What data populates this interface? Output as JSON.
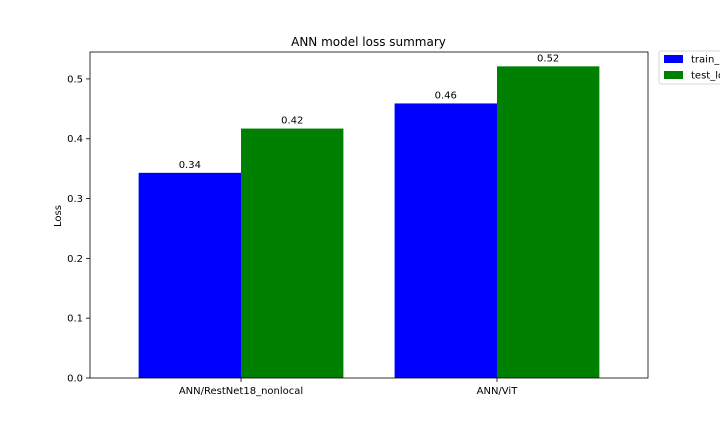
{
  "chart_data": {
    "type": "bar",
    "title": "ANN model loss summary",
    "xlabel": "",
    "ylabel": "Loss",
    "categories": [
      "ANN/RestNet18_nonlocal",
      "ANN/ViT"
    ],
    "series": [
      {
        "name": "train_loss",
        "legend_label": "train_l",
        "color": "#0000ff",
        "values": [
          0.343,
          0.459
        ],
        "labels": [
          "0.34",
          "0.46"
        ]
      },
      {
        "name": "test_loss",
        "legend_label": "test_lo",
        "color": "#008000",
        "values": [
          0.417,
          0.521
        ],
        "labels": [
          "0.42",
          "0.52"
        ]
      }
    ],
    "ylim": [
      0,
      0.545
    ],
    "yticks": [
      0.0,
      0.1,
      0.2,
      0.3,
      0.4,
      0.5
    ],
    "ytick_labels": [
      "0.0",
      "0.1",
      "0.2",
      "0.3",
      "0.4",
      "0.5"
    ],
    "grid": false,
    "legend_placement": "outside-top-right"
  }
}
